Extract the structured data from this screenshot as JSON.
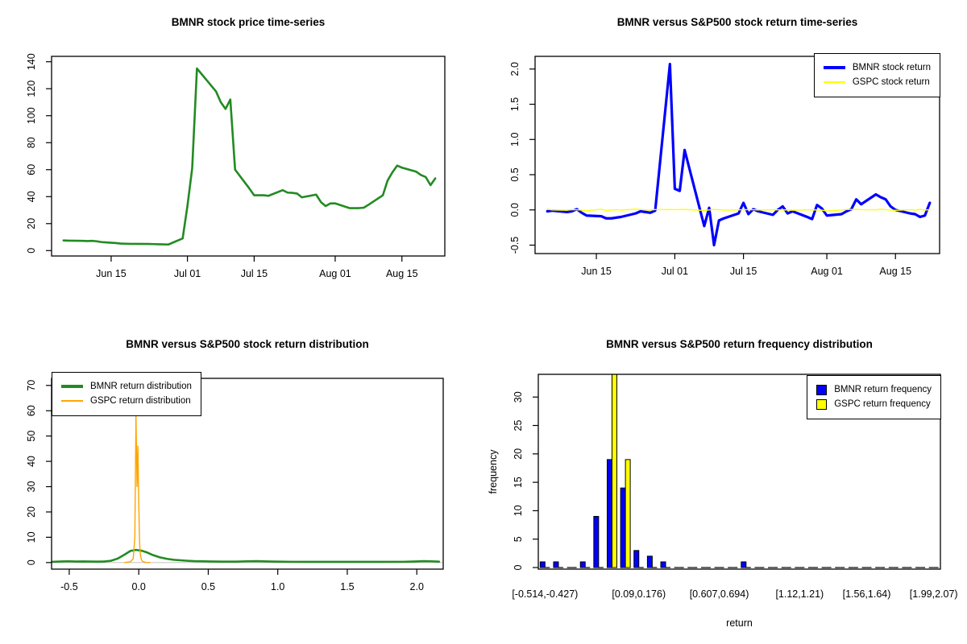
{
  "page": {
    "background": "#FFFFFF"
  },
  "colors": {
    "bmnr_price_green": "#228B22",
    "bmnr_return_blue": "#0000FF",
    "gspc_yellow": "#FFFF00",
    "gspc_orange": "#FFA500",
    "baseline_gray": "#C8C8C8",
    "axis_black": "#000000"
  },
  "chart_data": [
    {
      "type": "line",
      "title": "BMNR stock price time-series",
      "x_unit": "day index (Jun 1 = 1, Jul 1 = 31, Aug 1 = 62)",
      "xlim": [
        2.5,
        85
      ],
      "ylim": [
        -4,
        144
      ],
      "xticks": [
        {
          "v": 15,
          "label": "Jun 15"
        },
        {
          "v": 31,
          "label": "Jul 01"
        },
        {
          "v": 45,
          "label": "Jul 15"
        },
        {
          "v": 62,
          "label": "Aug 01"
        },
        {
          "v": 76,
          "label": "Aug 15"
        }
      ],
      "yticks": [
        {
          "v": 0,
          "label": "0"
        },
        {
          "v": 20,
          "label": "20"
        },
        {
          "v": 40,
          "label": "40"
        },
        {
          "v": 60,
          "label": "60"
        },
        {
          "v": 80,
          "label": "80"
        },
        {
          "v": 100,
          "label": "100"
        },
        {
          "v": 120,
          "label": "120"
        },
        {
          "v": 140,
          "label": "140"
        }
      ],
      "x": [
        5,
        6,
        9,
        10,
        11,
        12,
        13,
        16,
        17,
        18,
        19,
        20,
        23,
        24,
        25,
        26,
        27,
        30,
        31,
        32,
        33,
        37,
        38,
        39,
        40,
        41,
        44,
        45,
        46,
        47,
        48,
        51,
        52,
        53,
        54,
        55,
        58,
        59,
        60,
        61,
        62,
        65,
        66,
        67,
        68,
        69,
        72,
        73,
        74,
        75,
        76,
        79,
        80,
        81,
        82,
        83
      ],
      "series": [
        {
          "color": "#228B22",
          "lwd": 2.6,
          "y": [
            7.5,
            7.4,
            7.2,
            7.1,
            7.2,
            6.9,
            6.3,
            5.6,
            5.2,
            5.1,
            5,
            5,
            4.9,
            4.8,
            4.7,
            4.6,
            4.5,
            9,
            33,
            61,
            135,
            118,
            110,
            105,
            112,
            60,
            46,
            41,
            41,
            41,
            40.6,
            44.8,
            43,
            42.8,
            42.3,
            39.5,
            41.5,
            36,
            33,
            35,
            35,
            31.5,
            31.5,
            31.5,
            31.8,
            34,
            41,
            52,
            58,
            63,
            61.5,
            58.5,
            56,
            54.5,
            48.5,
            53.5
          ]
        }
      ]
    },
    {
      "type": "line",
      "title": "BMNR versus S&P500 stock return time-series",
      "x_unit": "day index (Jun 1 = 1, Jul 1 = 31, Aug 1 = 62)",
      "xlim": [
        2.5,
        85
      ],
      "ylim": [
        -0.62,
        2.18
      ],
      "xticks": [
        {
          "v": 15,
          "label": "Jun 15"
        },
        {
          "v": 31,
          "label": "Jul 01"
        },
        {
          "v": 45,
          "label": "Jul 15"
        },
        {
          "v": 62,
          "label": "Aug 01"
        },
        {
          "v": 76,
          "label": "Aug 15"
        }
      ],
      "yticks": [
        {
          "v": -0.5,
          "label": "-0.5"
        },
        {
          "v": 0,
          "label": "0.0"
        },
        {
          "v": 0.5,
          "label": "0.5"
        },
        {
          "v": 1,
          "label": "1.0"
        },
        {
          "v": 1.5,
          "label": "1.5"
        },
        {
          "v": 2,
          "label": "2.0"
        }
      ],
      "legend_position": "top-right",
      "x": [
        5,
        6,
        9,
        10,
        11,
        12,
        13,
        16,
        17,
        18,
        19,
        20,
        23,
        24,
        25,
        26,
        27,
        30,
        31,
        32,
        33,
        37,
        38,
        39,
        40,
        41,
        44,
        45,
        46,
        47,
        48,
        51,
        52,
        53,
        54,
        55,
        58,
        59,
        60,
        61,
        62,
        65,
        66,
        67,
        68,
        69,
        72,
        73,
        74,
        75,
        76,
        79,
        80,
        81,
        82,
        83
      ],
      "series": [
        {
          "name": "BMNR stock return",
          "color": "#0000FF",
          "lwd": 3.2,
          "y": [
            -0.02,
            -0.01,
            -0.03,
            -0.02,
            0.01,
            -0.04,
            -0.08,
            -0.09,
            -0.12,
            -0.12,
            -0.11,
            -0.1,
            -0.05,
            -0.02,
            -0.03,
            -0.04,
            -0.01,
            2.07,
            0.3,
            0.27,
            0.85,
            -0.23,
            0.03,
            -0.5,
            -0.15,
            -0.12,
            -0.05,
            0.1,
            -0.06,
            0.01,
            -0.02,
            -0.07,
            0,
            0.05,
            -0.05,
            -0.02,
            -0.1,
            -0.13,
            0.07,
            0.02,
            -0.08,
            -0.06,
            -0.02,
            0.01,
            0.15,
            0.08,
            0.22,
            0.18,
            0.15,
            0.05,
            0,
            -0.05,
            -0.06,
            -0.1,
            -0.08,
            0.1
          ]
        },
        {
          "name": "GSPC stock return",
          "color": "#FFFF00",
          "lwd": 1.4,
          "y": [
            0.01,
            0,
            -0.005,
            0.003,
            0.002,
            -0.003,
            -0.011,
            0.009,
            -0.008,
            -0.001,
            0.002,
            -0.002,
            0.01,
            0.006,
            0.001,
            -0.002,
            0.005,
            0.005,
            0.004,
            0.005,
            0.008,
            -0.008,
            -0.001,
            0.006,
            0.003,
            -0.003,
            0.001,
            0.005,
            0.003,
            0.002,
            -0.001,
            0.001,
            0.001,
            0,
            0.001,
            -0.005,
            0.002,
            -0.001,
            0,
            -0.004,
            -0.016,
            -0.001,
            0.007,
            0.007,
            0.008,
            0.003,
            0.002,
            0.01,
            0.003,
            -0.002,
            -0.006,
            0.003,
            -0.003,
            0.008,
            -0.002,
            0.004
          ]
        }
      ]
    },
    {
      "type": "line",
      "title": "BMNR versus S&P500 stock return distribution",
      "xlim": [
        -0.627,
        2.19
      ],
      "ylim": [
        -2.6,
        72.8
      ],
      "xticks": [
        {
          "v": -0.5,
          "label": "-0.5"
        },
        {
          "v": 0,
          "label": "0.0"
        },
        {
          "v": 0.5,
          "label": "0.5"
        },
        {
          "v": 1,
          "label": "1.0"
        },
        {
          "v": 1.5,
          "label": "1.5"
        },
        {
          "v": 2,
          "label": "2.0"
        }
      ],
      "yticks": [
        {
          "v": 0,
          "label": "0"
        },
        {
          "v": 10,
          "label": "10"
        },
        {
          "v": 20,
          "label": "20"
        },
        {
          "v": 30,
          "label": "30"
        },
        {
          "v": 40,
          "label": "40"
        },
        {
          "v": 50,
          "label": "50"
        },
        {
          "v": 60,
          "label": "60"
        },
        {
          "v": 70,
          "label": "70"
        }
      ],
      "baseline": {
        "y": 0,
        "color": "#C8C8C8"
      },
      "legend_position": "top-left",
      "series": [
        {
          "name": "BMNR return distribution",
          "color": "#228B22",
          "lwd": 2.6,
          "x": [
            -0.62,
            -0.55,
            -0.5,
            -0.45,
            -0.4,
            -0.35,
            -0.3,
            -0.25,
            -0.2,
            -0.15,
            -0.1,
            -0.06,
            -0.02,
            0.02,
            0.06,
            0.1,
            0.15,
            0.2,
            0.25,
            0.3,
            0.35,
            0.4,
            0.5,
            0.6,
            0.7,
            0.78,
            0.85,
            0.92,
            1,
            1.1,
            1.3,
            1.5,
            1.7,
            1.9,
            2,
            2.05,
            2.1,
            2.16
          ],
          "y": [
            0.3,
            0.45,
            0.5,
            0.4,
            0.45,
            0.4,
            0.35,
            0.4,
            0.7,
            1.6,
            3.2,
            4.6,
            5,
            4.7,
            4,
            3,
            2.1,
            1.5,
            1.1,
            0.9,
            0.7,
            0.55,
            0.45,
            0.35,
            0.35,
            0.5,
            0.55,
            0.45,
            0.35,
            0.3,
            0.28,
            0.28,
            0.28,
            0.3,
            0.45,
            0.55,
            0.5,
            0.35
          ]
        },
        {
          "name": "GSPC return distribution",
          "color": "#FFA500",
          "lwd": 1.4,
          "x": [
            -0.1,
            -0.06,
            -0.04,
            -0.028,
            -0.02,
            -0.012,
            -0.006,
            0,
            0.006,
            0.012,
            0.02,
            0.03,
            0.05,
            0.08
          ],
          "y": [
            0.05,
            0.3,
            1.5,
            10,
            58,
            30,
            46,
            24,
            8,
            3,
            1,
            0.4,
            0.1,
            0.05
          ]
        }
      ]
    },
    {
      "type": "bar",
      "title": "BMNR versus S&P500 return frequency distribution",
      "xlabel": "return",
      "ylabel": "frequency",
      "bins": 30,
      "bin_start": -0.514,
      "bin_width": 0.0861,
      "ylim": [
        -0.28,
        34
      ],
      "yticks": [
        {
          "v": 0,
          "label": "0"
        },
        {
          "v": 5,
          "label": "5"
        },
        {
          "v": 10,
          "label": "10"
        },
        {
          "v": 15,
          "label": "15"
        },
        {
          "v": 20,
          "label": "20"
        },
        {
          "v": 25,
          "label": "25"
        },
        {
          "v": 30,
          "label": "30"
        }
      ],
      "xtick_bins": [
        {
          "bin": 1,
          "label": "[-0.514,-0.427)"
        },
        {
          "bin": 8,
          "label": "[0.09,0.176)"
        },
        {
          "bin": 14,
          "label": "[0.607,0.694)"
        },
        {
          "bin": 20,
          "label": "[1.12,1.21)"
        },
        {
          "bin": 25,
          "label": "[1.56,1.64)"
        },
        {
          "bin": 30,
          "label": "[1.99,2.07)"
        }
      ],
      "legend_position": "top-right",
      "series": [
        {
          "name": "BMNR return frequency",
          "color": "#0000FF",
          "values": [
            1,
            1,
            0,
            1,
            9,
            19,
            14,
            3,
            2,
            1,
            0,
            0,
            0,
            0,
            0,
            1,
            0,
            0,
            0,
            0,
            0,
            0,
            0,
            0,
            0,
            0,
            0,
            0,
            0,
            0
          ]
        },
        {
          "name": "GSPC return frequency",
          "color": "#FFFF00",
          "values": [
            0,
            0,
            0,
            0,
            0,
            34,
            19,
            0,
            0,
            0,
            0,
            0,
            0,
            0,
            0,
            0,
            0,
            0,
            0,
            0,
            0,
            0,
            0,
            0,
            0,
            0,
            0,
            0,
            0,
            0
          ]
        }
      ]
    }
  ]
}
